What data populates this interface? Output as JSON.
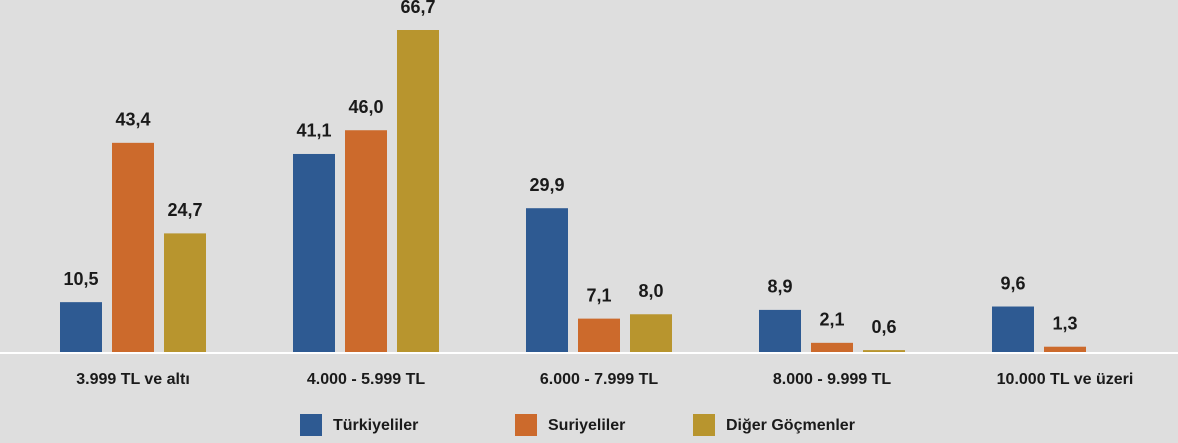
{
  "chart_data": {
    "type": "bar",
    "categories": [
      "3.999 TL ve altı",
      "4.000 - 5.999 TL",
      "6.000 - 7.999 TL",
      "8.000 - 9.999 TL",
      "10.000 TL ve üzeri"
    ],
    "series": [
      {
        "name": "Türkiyeliler",
        "color": "#2e5a92",
        "values": [
          10.5,
          41.1,
          29.9,
          8.9,
          9.6
        ],
        "value_labels": [
          "10,5",
          "41,1",
          "29,9",
          "8,9",
          "9,6"
        ]
      },
      {
        "name": "Suriyeliler",
        "color": "#cc6a2c",
        "values": [
          43.4,
          46.0,
          7.1,
          2.1,
          1.3
        ],
        "value_labels": [
          "43,4",
          "46,0",
          "7,1",
          "2,1",
          "1,3"
        ]
      },
      {
        "name": "Diğer Göçmenler",
        "color": "#b8952e",
        "values": [
          24.7,
          66.7,
          8.0,
          0.6,
          null
        ],
        "value_labels": [
          "24,7",
          "66,7",
          "8,0",
          "0,6",
          null
        ]
      }
    ],
    "legend": "bottom"
  }
}
